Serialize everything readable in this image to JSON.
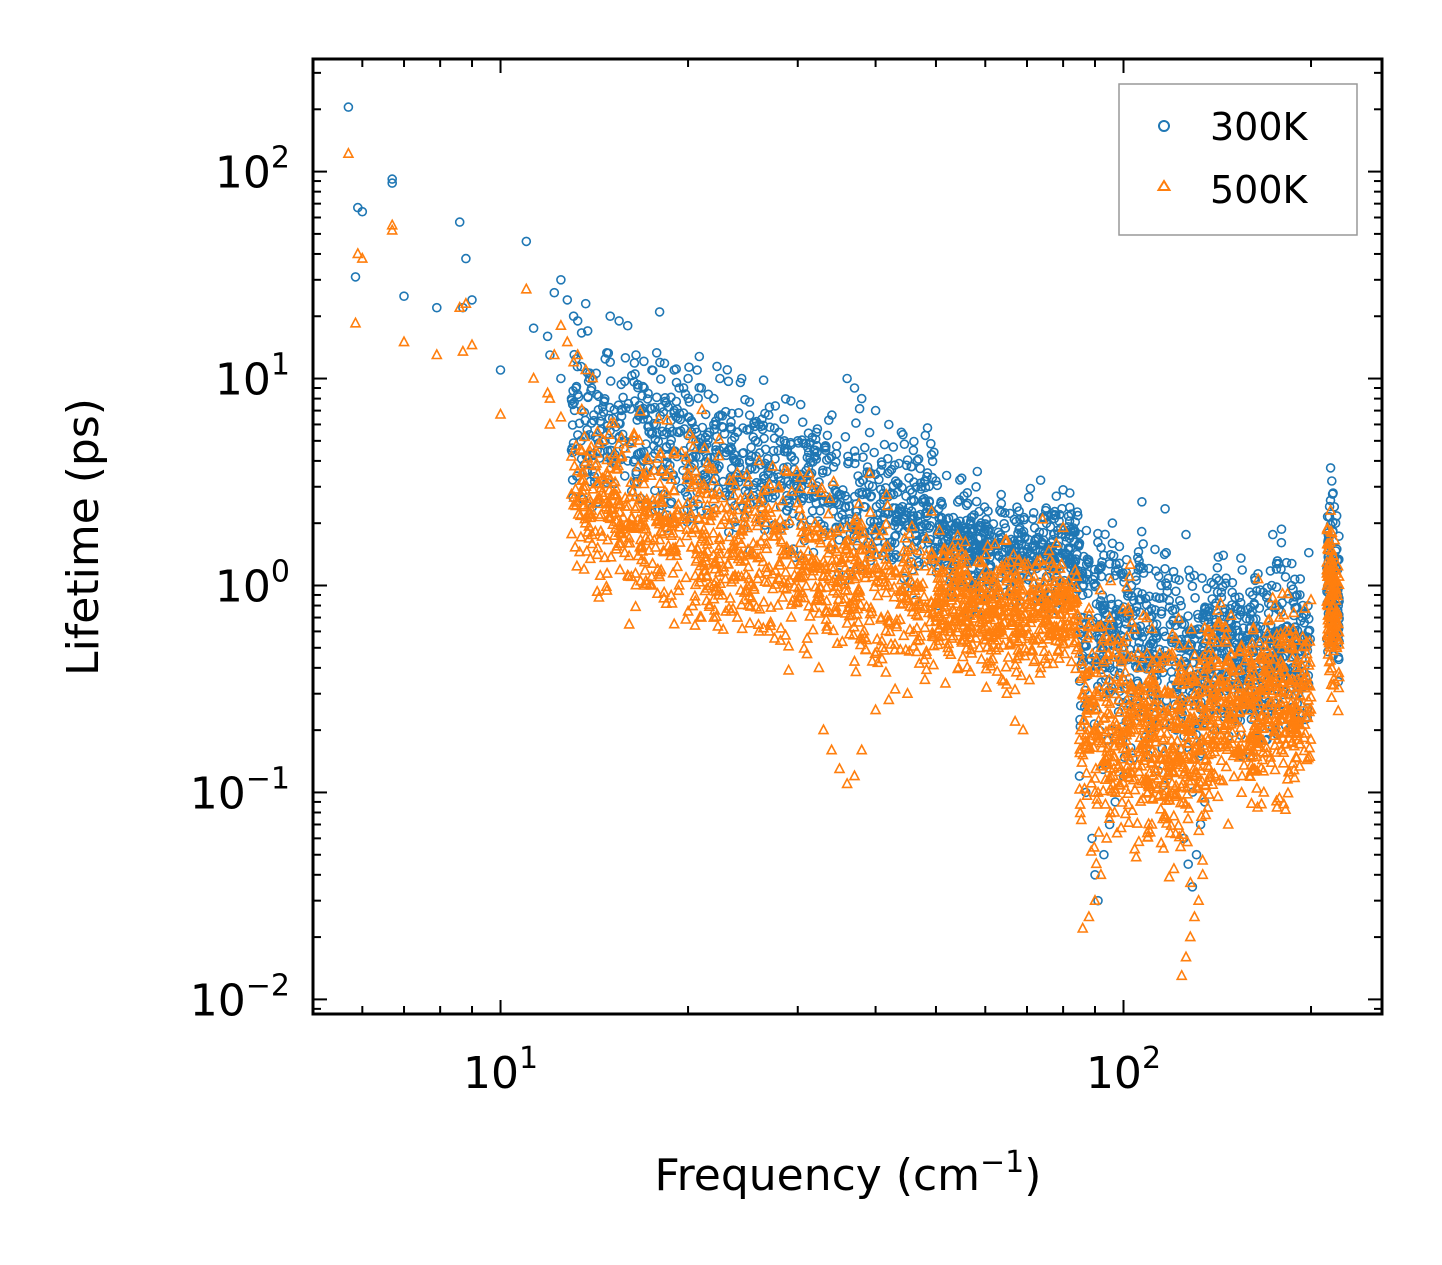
{
  "chart_data": {
    "type": "scatter",
    "title": "",
    "xlabel": "Frequency (cm",
    "xlabel_sup": "−1",
    "xlabel_end": ")",
    "ylabel": "Lifetime (ps)",
    "xscale": "log",
    "yscale": "log",
    "xlim": [
      5,
      260
    ],
    "ylim": [
      0.0085,
      350
    ],
    "x_ticks": [
      {
        "value": 10,
        "base": "10",
        "exp": "1"
      },
      {
        "value": 100,
        "base": "10",
        "exp": "2"
      }
    ],
    "y_ticks": [
      {
        "value": 0.01,
        "base": "10",
        "exp": "−2"
      },
      {
        "value": 0.1,
        "base": "10",
        "exp": "−1"
      },
      {
        "value": 1,
        "base": "10",
        "exp": "0"
      },
      {
        "value": 10,
        "base": "10",
        "exp": "1"
      },
      {
        "value": 100,
        "base": "10",
        "exp": "2"
      }
    ],
    "legend_position": "top-right",
    "series": [
      {
        "name": "300K",
        "marker": "circle",
        "color": "#1f77b4",
        "points": [
          [
            5.7,
            205
          ],
          [
            5.9,
            67
          ],
          [
            6.0,
            64
          ],
          [
            5.85,
            31
          ],
          [
            6.7,
            92
          ],
          [
            6.7,
            88
          ],
          [
            7.0,
            25
          ],
          [
            7.9,
            22
          ],
          [
            8.6,
            57
          ],
          [
            8.8,
            38
          ],
          [
            8.7,
            22
          ],
          [
            9.0,
            24
          ],
          [
            10.0,
            11
          ],
          [
            11.0,
            46
          ],
          [
            11.3,
            17.5
          ],
          [
            11.9,
            16
          ],
          [
            12.0,
            13
          ],
          [
            12.2,
            26
          ],
          [
            12.5,
            30
          ],
          [
            12.8,
            24
          ],
          [
            13.1,
            20
          ],
          [
            13.3,
            19
          ],
          [
            13.7,
            23
          ],
          [
            13.8,
            17
          ],
          [
            12.5,
            10
          ],
          [
            13.0,
            8
          ],
          [
            13.5,
            7
          ],
          [
            14.0,
            9
          ],
          [
            15.0,
            20
          ],
          [
            15.5,
            19
          ],
          [
            16.0,
            18
          ],
          [
            15.0,
            12
          ],
          [
            16.5,
            13
          ],
          [
            17.0,
            9
          ],
          [
            17.5,
            11
          ],
          [
            18.0,
            21
          ],
          [
            19.0,
            11
          ],
          [
            20.0,
            10
          ],
          [
            21.0,
            9
          ],
          [
            22.0,
            8
          ],
          [
            22.5,
            10
          ],
          [
            13.0,
            4.5
          ],
          [
            14.0,
            4
          ],
          [
            15.0,
            4.5
          ],
          [
            16.0,
            4
          ],
          [
            17.0,
            3.5
          ],
          [
            36.0,
            10
          ],
          [
            37.0,
            9
          ],
          [
            38.0,
            8
          ],
          [
            40.0,
            7
          ],
          [
            42.0,
            6
          ],
          [
            44.0,
            5.5
          ],
          [
            46.0,
            4.5
          ],
          [
            26.0,
            6
          ],
          [
            28.0,
            5.5
          ],
          [
            30.0,
            5
          ],
          [
            32.0,
            4.5
          ],
          [
            34.0,
            4.2
          ],
          [
            24.0,
            5.5
          ],
          [
            22.0,
            6
          ],
          [
            20.0,
            6.5
          ],
          [
            19.0,
            7
          ],
          [
            50.0,
            3.2
          ],
          [
            52.0,
            3.4
          ],
          [
            55.0,
            3.3
          ],
          [
            58.0,
            3.0
          ],
          [
            61.0,
            1.5
          ],
          [
            63.0,
            1.4
          ],
          [
            65.0,
            1.3
          ],
          [
            68.0,
            1.2
          ],
          [
            70.0,
            1.5
          ],
          [
            72.0,
            1.9
          ],
          [
            75.0,
            2.3
          ],
          [
            78.0,
            2.7
          ],
          [
            80.0,
            2.9
          ],
          [
            82.0,
            2.8
          ],
          [
            85.0,
            1.6
          ],
          [
            88.0,
            1.3
          ],
          [
            90.0,
            1.1
          ],
          [
            93.0,
            1.4
          ],
          [
            96.0,
            1.6
          ],
          [
            98.0,
            1.2
          ],
          [
            100.0,
            1.1
          ],
          [
            103.0,
            1.0
          ],
          [
            106.0,
            0.85
          ],
          [
            110.0,
            0.7
          ],
          [
            113.0,
            0.65
          ],
          [
            116.0,
            0.6
          ],
          [
            120.0,
            0.55
          ],
          [
            123.0,
            0.5
          ],
          [
            126.0,
            0.45
          ],
          [
            130.0,
            0.55
          ],
          [
            134.0,
            0.7
          ],
          [
            137.0,
            0.75
          ],
          [
            140.0,
            0.6
          ],
          [
            143.0,
            0.5
          ],
          [
            146.0,
            0.4
          ],
          [
            150.0,
            0.35
          ],
          [
            153.0,
            0.3
          ],
          [
            156.0,
            0.25
          ],
          [
            165.0,
            0.3
          ],
          [
            170.0,
            0.9
          ],
          [
            173.0,
            1.0
          ],
          [
            176.0,
            1.2
          ],
          [
            179.0,
            1.2
          ],
          [
            182.0,
            1.1
          ],
          [
            186.0,
            1.0
          ],
          [
            190.0,
            0.9
          ],
          [
            194.0,
            0.8
          ],
          [
            198.0,
            0.6
          ],
          [
            215.0,
            3.7
          ],
          [
            216.0,
            3.2
          ],
          [
            217.0,
            2.8
          ],
          [
            218.0,
            2.4
          ],
          [
            219.0,
            2.0
          ],
          [
            220.0,
            1.5
          ],
          [
            89.0,
            0.06
          ],
          [
            90.0,
            0.04
          ],
          [
            91.0,
            0.03
          ],
          [
            93.0,
            0.05
          ],
          [
            95.0,
            0.07
          ],
          [
            97.0,
            0.09
          ],
          [
            125.0,
            0.06
          ],
          [
            127.0,
            0.045
          ],
          [
            129.0,
            0.035
          ],
          [
            131.0,
            0.05
          ],
          [
            133.0,
            0.07
          ],
          [
            135.0,
            0.09
          ],
          [
            85.0,
            0.12
          ],
          [
            87.0,
            0.1
          ],
          [
            100.0,
            0.12
          ],
          [
            120.0,
            0.15
          ],
          [
            140.0,
            0.2
          ],
          [
            160.0,
            0.15
          ],
          [
            170.0,
            0.18
          ],
          [
            175.0,
            0.2
          ]
        ]
      },
      {
        "name": "500K",
        "marker": "triangle",
        "color": "#ff7f0e",
        "points": [
          [
            5.7,
            122
          ],
          [
            5.9,
            40
          ],
          [
            6.0,
            38
          ],
          [
            5.85,
            18.5
          ],
          [
            6.7,
            55
          ],
          [
            6.7,
            52
          ],
          [
            7.0,
            15
          ],
          [
            7.9,
            13
          ],
          [
            8.6,
            22
          ],
          [
            8.8,
            23
          ],
          [
            8.7,
            13.5
          ],
          [
            9.0,
            14.5
          ],
          [
            10.0,
            6.7
          ],
          [
            11.0,
            27
          ],
          [
            11.3,
            10
          ],
          [
            11.9,
            8.5
          ],
          [
            12.0,
            8
          ],
          [
            12.2,
            13
          ],
          [
            12.5,
            18
          ],
          [
            12.8,
            15
          ],
          [
            13.1,
            12
          ],
          [
            13.3,
            13
          ],
          [
            13.7,
            11
          ],
          [
            12.0,
            6.0
          ],
          [
            12.5,
            6.5
          ],
          [
            13.0,
            4.2
          ],
          [
            13.5,
            3.5
          ],
          [
            14.0,
            2.3
          ],
          [
            14.5,
            2.2
          ],
          [
            15.0,
            2.1
          ],
          [
            15.5,
            1.8
          ],
          [
            16.0,
            1.6
          ],
          [
            17.0,
            1.0
          ],
          [
            17.5,
            1.0
          ],
          [
            18.0,
            1.1
          ],
          [
            19.0,
            0.65
          ],
          [
            20.0,
            0.75
          ],
          [
            21.0,
            0.7
          ],
          [
            22.0,
            0.7
          ],
          [
            23.0,
            0.75
          ],
          [
            24.0,
            0.7
          ],
          [
            25.0,
            0.8
          ],
          [
            26.0,
            0.6
          ],
          [
            27.0,
            0.6
          ],
          [
            33.0,
            0.2
          ],
          [
            34.0,
            0.16
          ],
          [
            35.0,
            0.13
          ],
          [
            36.0,
            0.11
          ],
          [
            37.0,
            0.12
          ],
          [
            38.0,
            0.16
          ],
          [
            40.0,
            0.25
          ],
          [
            42.0,
            0.28
          ],
          [
            45.0,
            0.3
          ],
          [
            48.0,
            0.35
          ],
          [
            50.0,
            0.7
          ],
          [
            52.0,
            0.8
          ],
          [
            55.0,
            0.9
          ],
          [
            58.0,
            1.0
          ],
          [
            61.0,
            0.7
          ],
          [
            63.0,
            0.5
          ],
          [
            65.0,
            0.3
          ],
          [
            67.0,
            0.22
          ],
          [
            69.0,
            0.2
          ],
          [
            72.0,
            0.7
          ],
          [
            75.0,
            1.1
          ],
          [
            78.0,
            1.6
          ],
          [
            80.0,
            1.9
          ],
          [
            84.0,
            0.6
          ],
          [
            86.0,
            0.4
          ],
          [
            88.0,
            0.2
          ],
          [
            90.0,
            0.1
          ],
          [
            92.0,
            0.5
          ],
          [
            95.0,
            0.7
          ],
          [
            98.0,
            0.55
          ],
          [
            100.0,
            0.5
          ],
          [
            103.0,
            0.45
          ],
          [
            106.0,
            0.4
          ],
          [
            110.0,
            0.35
          ],
          [
            115.0,
            0.4
          ],
          [
            120.0,
            0.3
          ],
          [
            123.0,
            0.25
          ],
          [
            126.0,
            0.2
          ],
          [
            130.0,
            0.3
          ],
          [
            134.0,
            0.45
          ],
          [
            137.0,
            0.5
          ],
          [
            140.0,
            0.3
          ],
          [
            145.0,
            0.2
          ],
          [
            150.0,
            0.15
          ],
          [
            155.0,
            0.12
          ],
          [
            168.0,
            0.1
          ],
          [
            172.0,
            0.4
          ],
          [
            175.0,
            0.8
          ],
          [
            178.0,
            0.7
          ],
          [
            182.0,
            0.6
          ],
          [
            186.0,
            0.5
          ],
          [
            190.0,
            0.4
          ],
          [
            195.0,
            0.35
          ],
          [
            215.0,
            2.3
          ],
          [
            216.0,
            1.8
          ],
          [
            217.0,
            1.4
          ],
          [
            218.0,
            1.0
          ],
          [
            219.0,
            0.7
          ],
          [
            220.0,
            0.5
          ],
          [
            86.0,
            0.022
          ],
          [
            88.0,
            0.025
          ],
          [
            90.0,
            0.03
          ],
          [
            92.0,
            0.04
          ],
          [
            94.0,
            0.06
          ],
          [
            124.0,
            0.013
          ],
          [
            126.0,
            0.016
          ],
          [
            128.0,
            0.02
          ],
          [
            130.0,
            0.025
          ],
          [
            132.0,
            0.03
          ],
          [
            134.0,
            0.04
          ],
          [
            26.0,
            4.0
          ],
          [
            28.0,
            3.0
          ],
          [
            30.0,
            2.5
          ],
          [
            32.0,
            2.0
          ],
          [
            34.0,
            1.8
          ],
          [
            36.0,
            1.5
          ],
          [
            38.0,
            1.2
          ],
          [
            42.0,
            1.0
          ],
          [
            46.0,
            0.9
          ],
          [
            22.0,
            3.2
          ],
          [
            24.0,
            3.5
          ],
          [
            20.0,
            3.8
          ]
        ]
      }
    ],
    "clusters": [
      {
        "series": 0,
        "x": [
          13,
          50
        ],
        "logmid_start": 0.8,
        "logmid_end": 0.35,
        "spread": 0.35,
        "n": 900
      },
      {
        "series": 0,
        "x": [
          50,
          85
        ],
        "logmid_start": 0.2,
        "logmid_end": 0.15,
        "spread": 0.25,
        "n": 500
      },
      {
        "series": 0,
        "x": [
          85,
          135
        ],
        "logmid_start": -0.2,
        "logmid_end": -0.4,
        "spread": 0.5,
        "n": 500
      },
      {
        "series": 0,
        "x": [
          135,
          200
        ],
        "logmid_start": -0.3,
        "logmid_end": -0.3,
        "spread": 0.4,
        "n": 450
      },
      {
        "series": 0,
        "x": [
          212,
          222
        ],
        "logmid_start": 0.1,
        "logmid_end": -0.1,
        "spread": 0.35,
        "n": 120
      },
      {
        "series": 1,
        "x": [
          13,
          50
        ],
        "logmid_start": 0.45,
        "logmid_end": -0.1,
        "spread": 0.4,
        "n": 1000
      },
      {
        "series": 1,
        "x": [
          50,
          85
        ],
        "logmid_start": -0.1,
        "logmid_end": -0.15,
        "spread": 0.3,
        "n": 550
      },
      {
        "series": 1,
        "x": [
          85,
          135
        ],
        "logmid_start": -0.6,
        "logmid_end": -0.8,
        "spread": 0.55,
        "n": 600
      },
      {
        "series": 1,
        "x": [
          135,
          200
        ],
        "logmid_start": -0.6,
        "logmid_end": -0.55,
        "spread": 0.45,
        "n": 500
      },
      {
        "series": 1,
        "x": [
          212,
          222
        ],
        "logmid_start": -0.05,
        "logmid_end": -0.2,
        "spread": 0.35,
        "n": 130
      }
    ]
  }
}
